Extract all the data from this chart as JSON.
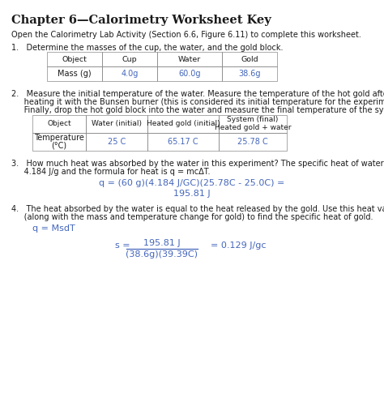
{
  "title": "Chapter 6—Calorimetry Worksheet Key",
  "subtitle": "Open the Calorimetry Lab Activity (Section 6.6, Figure 6.11) to complete this worksheet.",
  "bg_color": "#ffffff",
  "text_color": "#1a1a1a",
  "blue_color": "#4466bb",
  "q1_label": "1.   Determine the masses of the cup, the water, and the gold block.",
  "table1_headers": [
    "Object",
    "Cup",
    "Water",
    "Gold"
  ],
  "table1_rows": [
    [
      "Mass (g)",
      "4.0g",
      "60.0g",
      "38.6g"
    ]
  ],
  "table1_blue_data_cols": [
    1,
    2,
    3
  ],
  "q2_line1": "2.   Measure the initial temperature of the water. Measure the temperature of the hot gold after",
  "q2_line2": "     heating it with the Bunsen burner (this is considered its initial temperature for the experiment).",
  "q2_line3": "     Finally, drop the hot gold block into the water and measure the final temperature of the system.",
  "table2_headers": [
    "Object",
    "Water (initial)",
    "Heated gold (initial)",
    "System (final)\nHeated gold + water"
  ],
  "table2_rows": [
    [
      "Temperature\n(°C)",
      "25 C",
      "65.17 C",
      "25.78 C"
    ]
  ],
  "table2_blue_data_cols": [
    1,
    2,
    3
  ],
  "q3_line1": "3.   How much heat was absorbed by the water in this experiment? The specific heat of water is",
  "q3_line2": "     4.184 J/g and the formula for heat is q = mcΔT.",
  "q3_eq1": "q = (60 g)(4.184 J/GC)(25.78C - 25.0C) =",
  "q3_eq2": "195.81 J",
  "q4_line1": "4.   The heat absorbed by the water is equal to the heat released by the gold. Use this heat value",
  "q4_line2": "     (along with the mass and temperature change for gold) to find the specific heat of gold.",
  "q4_eq1": "q = MsdT",
  "q4_s_label": "s =",
  "q4_numerator": "195.81 J",
  "q4_denominator": "(38.6g)(39.39C)",
  "q4_result": "= 0.129 J/gc"
}
